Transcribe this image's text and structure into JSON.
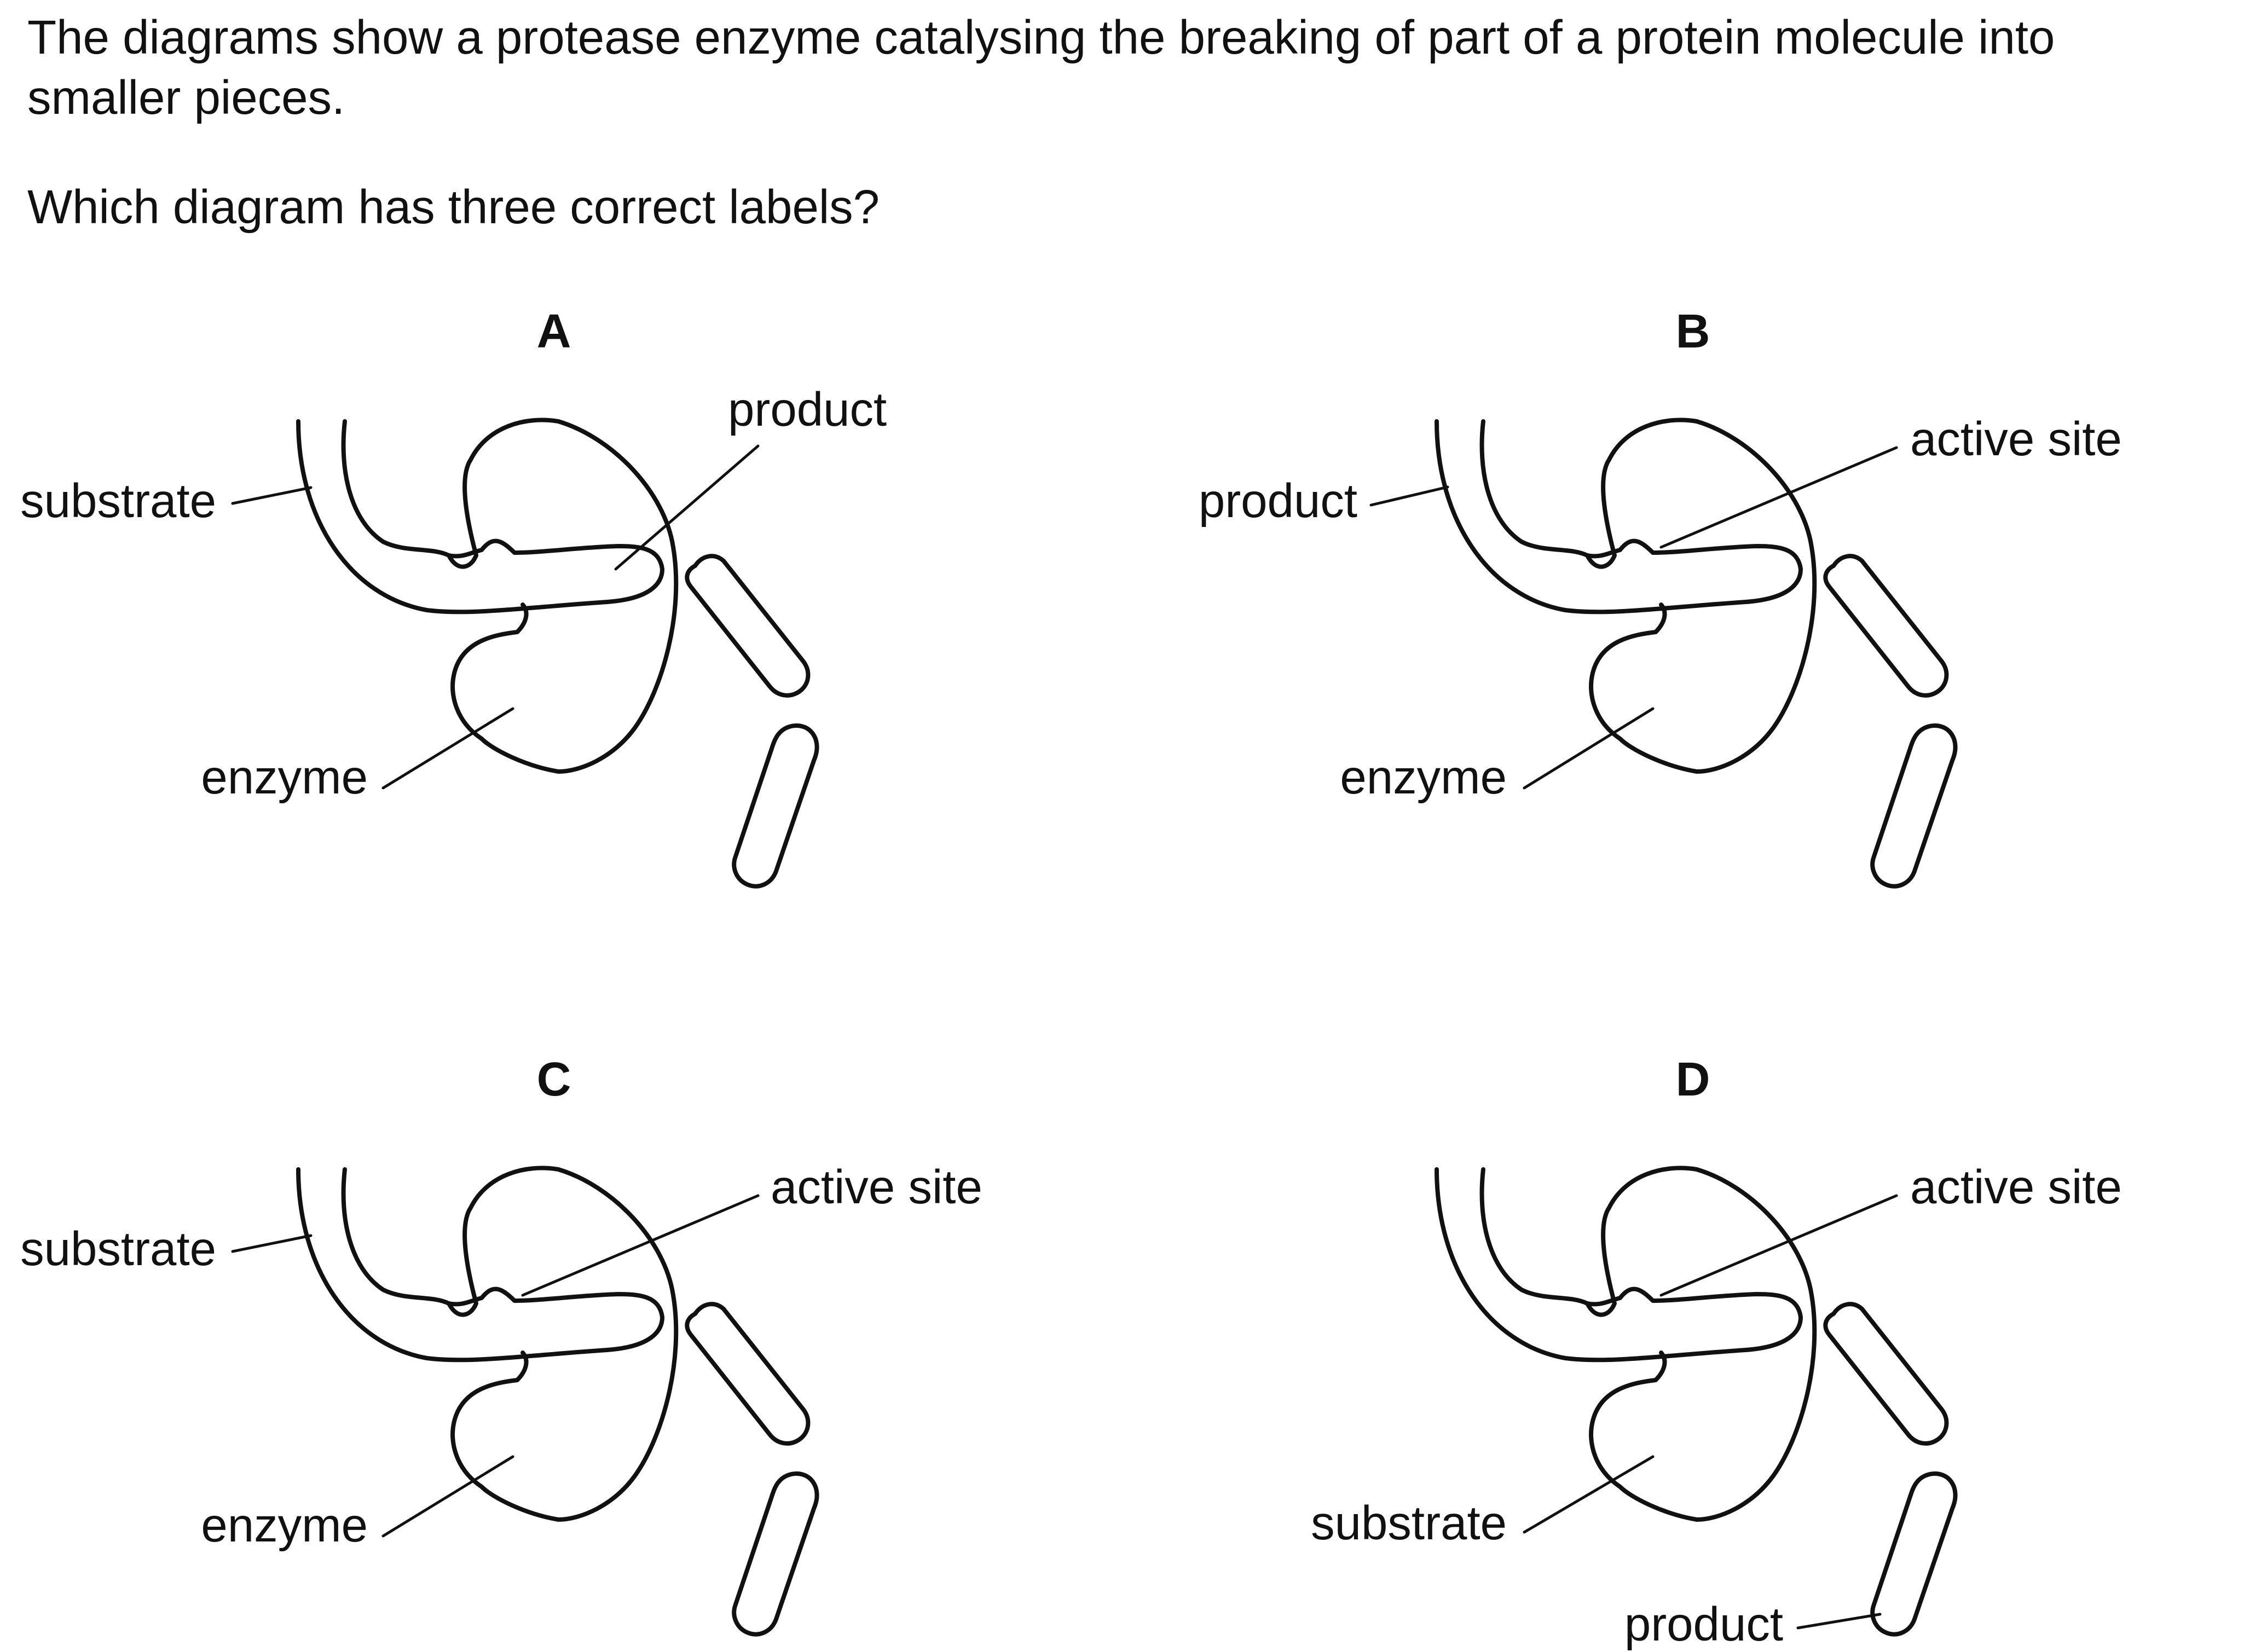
{
  "question": {
    "intro": "The diagrams show a protease enzyme catalysing the breaking of part of a protein molecule into smaller pieces.",
    "prompt": "Which diagram has three correct labels?"
  },
  "diagrams": [
    {
      "letter": "A",
      "labels": {
        "top_left": "substrate",
        "top_right": "product",
        "bottom_left": "enzyme"
      }
    },
    {
      "letter": "B",
      "labels": {
        "top_left": "product",
        "top_right": "active site",
        "bottom_left": "enzyme"
      }
    },
    {
      "letter": "C",
      "labels": {
        "top_left": "substrate",
        "top_right": "active site",
        "bottom_left": "enzyme"
      }
    },
    {
      "letter": "D",
      "labels": {
        "top_left": "",
        "top_right": "active site",
        "bottom_left": "substrate",
        "bottom_right": "product"
      }
    }
  ]
}
